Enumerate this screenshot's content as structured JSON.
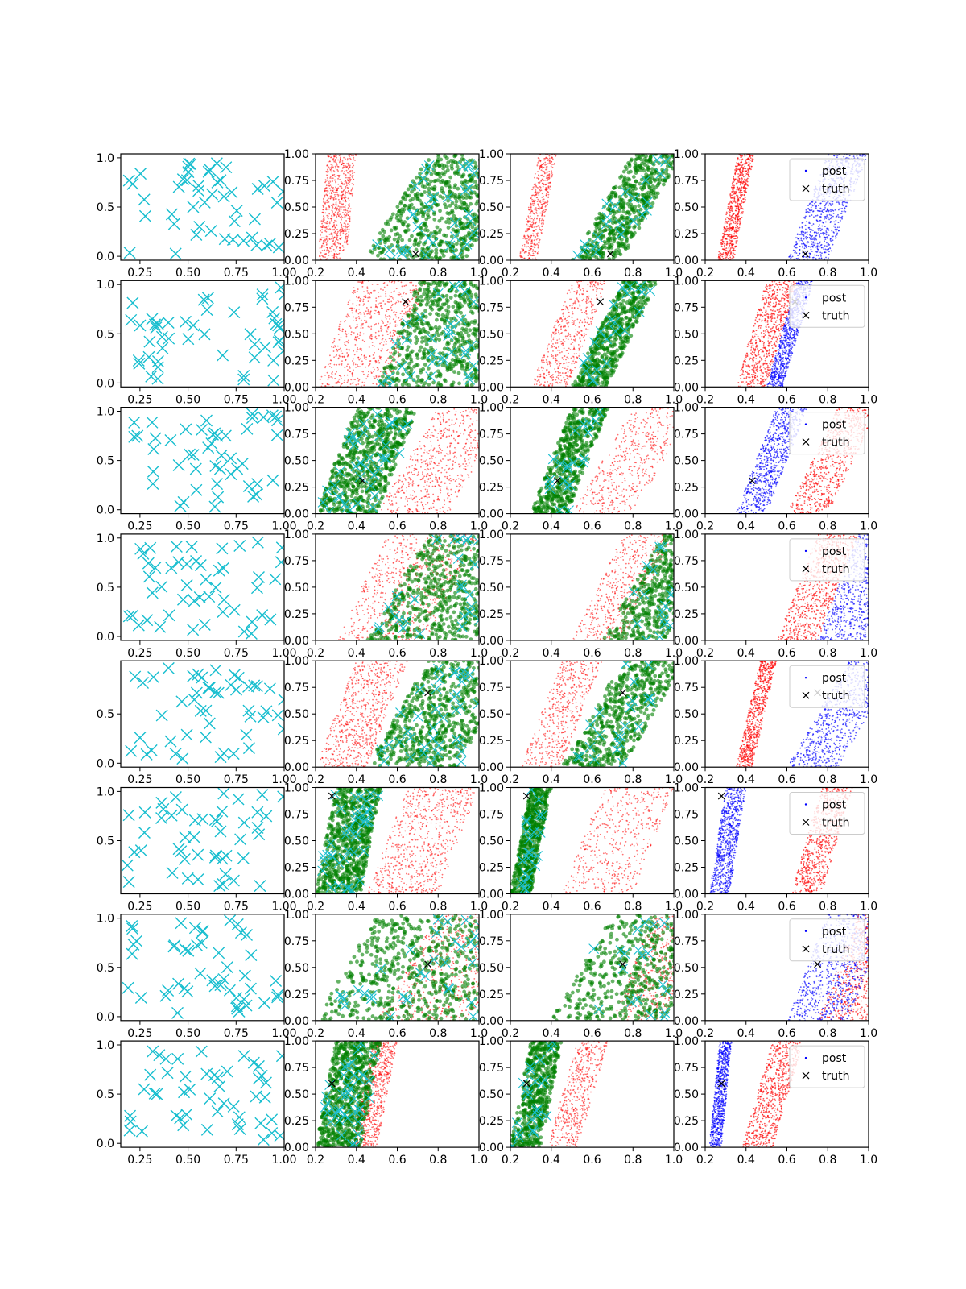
{
  "colors": {
    "observed": "#17becf",
    "prior": "#ff0000",
    "proposal": "#008000",
    "posterior": "#0000ff",
    "truth": "#000000"
  },
  "chart_data": {
    "type": "scatter",
    "grid": false,
    "layout": "8 rows x 4 columns of scatter subplots",
    "legend": {
      "placement": "top-right",
      "entries": [
        {
          "label": "post",
          "marker": "point",
          "color": "#0000ff"
        },
        {
          "label": "truth",
          "marker": "x",
          "color": "#000000"
        }
      ]
    },
    "column_axes": [
      {
        "xlim": [
          0.15,
          1.0
        ],
        "xticks": [
          "0.25",
          "0.50",
          "0.75",
          "1.00"
        ]
      },
      {
        "xlim": [
          0.2,
          1.0
        ],
        "xticks": [
          "0.2",
          "0.4",
          "0.6",
          "0.8",
          "1.0"
        ],
        "ylim": [
          0,
          1
        ],
        "yticks": [
          "0.00",
          "0.25",
          "0.50",
          "0.75",
          "1.00"
        ]
      },
      {
        "xlim": [
          0.2,
          1.0
        ],
        "xticks": [
          "0.2",
          "0.4",
          "0.6",
          "0.8",
          "1.0"
        ],
        "ylim": [
          0,
          1
        ],
        "yticks": [
          "0.00",
          "0.25",
          "0.50",
          "0.75",
          "1.00"
        ]
      },
      {
        "xlim": [
          0.2,
          1.0
        ],
        "xticks": [
          "0.2",
          "0.4",
          "0.6",
          "0.8",
          "1.0"
        ],
        "ylim": [
          0,
          1
        ],
        "yticks": [
          "0.00",
          "0.25",
          "0.50",
          "0.75",
          "1.00"
        ]
      }
    ],
    "rows": [
      {
        "truth": [
          0.69,
          0.06
        ],
        "red_band": {
          "x_at_y0": 0.21,
          "slope": 0.05,
          "width": 0.14,
          "density": 0.95
        },
        "green_band": {
          "x_at_y0": 0.43,
          "slope": 0.33,
          "width": 0.5,
          "density": 0.6
        },
        "col3_red": {
          "x_at_y0": 0.24,
          "slope": 0.1,
          "width": 0.09
        },
        "col3_green": {
          "x_at_y0": 0.5,
          "slope": 0.3,
          "width": 0.24
        },
        "post_band": {
          "x_at_y0": 0.6,
          "slope": 0.2,
          "width": 0.2
        },
        "post_red": {
          "x_at_y0": 0.26,
          "slope": 0.1,
          "width": 0.08
        },
        "col1_yticks": [
          "0.0",
          "0.5",
          "1.0"
        ]
      },
      {
        "truth": [
          0.64,
          0.8
        ],
        "red_band": {
          "x_at_y0": 0.2,
          "slope": 0.2,
          "width": 0.35,
          "density": 0.7
        },
        "green_band": {
          "x_at_y0": 0.5,
          "slope": 0.2,
          "width": 0.5,
          "density": 0.8
        },
        "col3_red": {
          "x_at_y0": 0.3,
          "slope": 0.2,
          "width": 0.18
        },
        "col3_green": {
          "x_at_y0": 0.5,
          "slope": 0.25,
          "width": 0.17
        },
        "post_band": {
          "x_at_y0": 0.5,
          "slope": 0.15,
          "width": 0.08
        },
        "post_red": {
          "x_at_y0": 0.35,
          "slope": 0.15,
          "width": 0.15
        },
        "col1_yticks": [
          "0.0",
          "0.5",
          "1.0"
        ]
      },
      {
        "truth": [
          0.43,
          0.31
        ],
        "red_band": {
          "x_at_y0": 0.5,
          "slope": 0.3,
          "width": 0.35,
          "density": 0.45
        },
        "green_band": {
          "x_at_y0": 0.2,
          "slope": 0.2,
          "width": 0.3,
          "density": 0.8
        },
        "col3_red": {
          "x_at_y0": 0.5,
          "slope": 0.3,
          "width": 0.3
        },
        "col3_green": {
          "x_at_y0": 0.3,
          "slope": 0.2,
          "width": 0.18
        },
        "post_band": {
          "x_at_y0": 0.35,
          "slope": 0.2,
          "width": 0.15
        },
        "post_red": {
          "x_at_y0": 0.6,
          "slope": 0.25,
          "width": 0.2
        },
        "col1_yticks": [
          "0.0",
          "0.5",
          "1.0"
        ]
      },
      {
        "truth": null,
        "red_band": {
          "x_at_y0": 0.3,
          "slope": 0.25,
          "width": 0.45,
          "density": 0.6
        },
        "green_band": {
          "x_at_y0": 0.45,
          "slope": 0.3,
          "width": 0.55,
          "density": 0.75
        },
        "col3_red": {
          "x_at_y0": 0.5,
          "slope": 0.25,
          "width": 0.25
        },
        "col3_green": {
          "x_at_y0": 0.65,
          "slope": 0.3,
          "width": 0.3
        },
        "post_band": {
          "x_at_y0": 0.75,
          "slope": 0.2,
          "width": 0.25
        },
        "post_red": {
          "x_at_y0": 0.55,
          "slope": 0.2,
          "width": 0.2
        },
        "col1_yticks": [
          "0.0",
          "0.5",
          "1.0"
        ]
      },
      {
        "truth": [
          0.75,
          0.7
        ],
        "red_band": {
          "x_at_y0": 0.2,
          "slope": 0.2,
          "width": 0.25,
          "density": 0.8
        },
        "green_band": {
          "x_at_y0": 0.45,
          "slope": 0.3,
          "width": 0.45,
          "density": 0.7
        },
        "col3_red": {
          "x_at_y0": 0.25,
          "slope": 0.2,
          "width": 0.2
        },
        "col3_green": {
          "x_at_y0": 0.45,
          "slope": 0.3,
          "width": 0.3
        },
        "post_band": {
          "x_at_y0": 0.6,
          "slope": 0.3,
          "width": 0.25
        },
        "post_red": {
          "x_at_y0": 0.35,
          "slope": 0.12,
          "width": 0.08
        },
        "col1_yticks": [
          "0.0",
          "0.5"
        ]
      },
      {
        "truth": [
          0.28,
          0.92
        ],
        "red_band": {
          "x_at_y0": 0.45,
          "slope": 0.2,
          "width": 0.35,
          "density": 0.45
        },
        "green_band": {
          "x_at_y0": 0.2,
          "slope": 0.1,
          "width": 0.22,
          "density": 0.9
        },
        "col3_red": {
          "x_at_y0": 0.45,
          "slope": 0.2,
          "width": 0.35
        },
        "col3_green": {
          "x_at_y0": 0.2,
          "slope": 0.1,
          "width": 0.1
        },
        "post_band": {
          "x_at_y0": 0.22,
          "slope": 0.08,
          "width": 0.1
        },
        "post_red": {
          "x_at_y0": 0.62,
          "slope": 0.15,
          "width": 0.15
        },
        "col1_yticks": [
          "0.5",
          "1.0"
        ]
      },
      {
        "truth": [
          0.75,
          0.53
        ],
        "red_band": {
          "x_at_y0": 0.5,
          "slope": 0.3,
          "width": 0.45,
          "density": 0.75
        },
        "green_band": {
          "x_at_y0": 0.2,
          "slope": 0.3,
          "width": 0.8,
          "density": 0.6
        },
        "col3_red": {
          "x_at_y0": 0.7,
          "slope": 0.2,
          "width": 0.25
        },
        "col3_green": {
          "x_at_y0": 0.4,
          "slope": 0.3,
          "width": 0.55
        },
        "post_band": {
          "x_at_y0": 0.6,
          "slope": 0.2,
          "width": 0.3
        },
        "post_red": {
          "x_at_y0": 0.75,
          "slope": 0.2,
          "width": 0.25
        },
        "col1_yticks": [
          "0.0",
          "0.5",
          "1.0"
        ]
      },
      {
        "truth": [
          0.28,
          0.6
        ],
        "red_band": {
          "x_at_y0": 0.38,
          "slope": 0.1,
          "width": 0.12,
          "density": 0.85
        },
        "green_band": {
          "x_at_y0": 0.2,
          "slope": 0.1,
          "width": 0.22,
          "density": 0.9
        },
        "col3_red": {
          "x_at_y0": 0.38,
          "slope": 0.15,
          "width": 0.15
        },
        "col3_green": {
          "x_at_y0": 0.2,
          "slope": 0.1,
          "width": 0.15
        },
        "post_band": {
          "x_at_y0": 0.22,
          "slope": 0.05,
          "width": 0.06
        },
        "post_red": {
          "x_at_y0": 0.38,
          "slope": 0.15,
          "width": 0.15
        },
        "col1_yticks": [
          "0.0",
          "0.5",
          "1.0"
        ]
      }
    ]
  }
}
